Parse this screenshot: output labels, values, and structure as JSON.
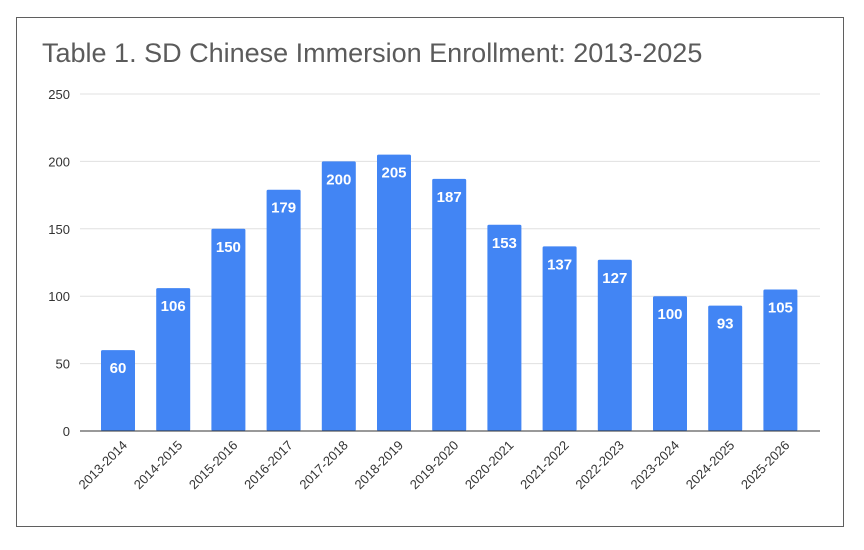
{
  "chart_data": {
    "type": "bar",
    "title": "Table 1. SD Chinese Immersion Enrollment: 2013-2025",
    "categories": [
      "2013-2014",
      "2014-2015",
      "2015-2016",
      "2016-2017",
      "2017-2018",
      "2018-2019",
      "2019-2020",
      "2020-2021",
      "2021-2022",
      "2022-2023",
      "2023-2024",
      "2024-2025",
      "2025-2026"
    ],
    "values": [
      60,
      106,
      150,
      179,
      200,
      205,
      187,
      153,
      137,
      127,
      100,
      93,
      105
    ],
    "ylim": [
      0,
      250
    ],
    "yticks": [
      0,
      50,
      100,
      150,
      200,
      250
    ],
    "xlabel": "",
    "ylabel": "",
    "grid": true,
    "bar_color": "#4285f4",
    "gridline_color": "#e0e0e0",
    "data_labels": true
  }
}
